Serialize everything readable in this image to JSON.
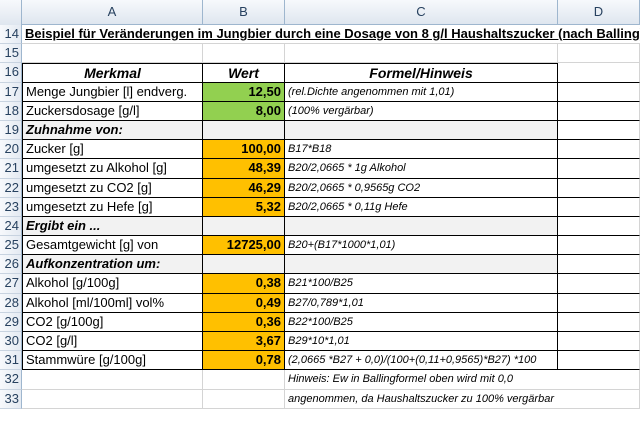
{
  "columns": [
    "A",
    "B",
    "C",
    "D"
  ],
  "title_row": {
    "num": "14",
    "text": "Beispiel für Veränderungen im Jungbier durch eine Dosage von 8 g/l Haushaltszucker (nach Balling)"
  },
  "header_row": {
    "num": "16",
    "a": "Merkmal",
    "b": "Wert",
    "c": "Formel/Hinweis"
  },
  "rows": [
    {
      "num": "17",
      "a": "Menge Jungbier [l] endverg.",
      "b": "12,50",
      "c": "(rel.Dichte angenommen mit 1,01)",
      "fill": "green"
    },
    {
      "num": "18",
      "a": "Zuckersdosage [g/l]",
      "b": "8,00",
      "c": "(100% vergärbar)",
      "fill": "green"
    },
    {
      "num": "19",
      "a": "Zuhnahme von:",
      "b": "",
      "c": "",
      "fill": "section"
    },
    {
      "num": "20",
      "a": "Zucker [g]",
      "b": "100,00",
      "c": "B17*B18",
      "fill": "orange"
    },
    {
      "num": "21",
      "a": "umgesetzt zu Alkohol [g]",
      "b": "48,39",
      "c": "B20/2,0665 * 1g Alkohol",
      "fill": "orange"
    },
    {
      "num": "22",
      "a": "umgesetzt zu CO2 [g]",
      "b": "46,29",
      "c": "B20/2,0665 * 0,9565g CO2",
      "fill": "orange"
    },
    {
      "num": "23",
      "a": "umgesetzt zu Hefe [g]",
      "b": "5,32",
      "c": "B20/2,0665 * 0,11g Hefe",
      "fill": "orange"
    },
    {
      "num": "24",
      "a": "Ergibt ein ...",
      "b": "",
      "c": "",
      "fill": "section"
    },
    {
      "num": "25",
      "a": "Gesamtgewicht [g] von",
      "b": "12725,00",
      "c": "B20+(B17*1000*1,01)",
      "fill": "orange"
    },
    {
      "num": "26",
      "a": "Aufkonzentration um:",
      "b": "",
      "c": "",
      "fill": "section"
    },
    {
      "num": "27",
      "a": "Alkohol [g/100g]",
      "b": "0,38",
      "c": "B21*100/B25",
      "fill": "orange"
    },
    {
      "num": "28",
      "a": "Alkohol [ml/100ml] vol%",
      "b": "0,49",
      "c": "B27/0,789*1,01",
      "fill": "orange"
    },
    {
      "num": "29",
      "a": "CO2 [g/100g]",
      "b": "0,36",
      "c": "B22*100/B25",
      "fill": "orange"
    },
    {
      "num": "30",
      "a": "CO2 [g/l]",
      "b": "3,67",
      "c": "B29*10*1,01",
      "fill": "orange"
    },
    {
      "num": "31",
      "a": "Stammwüre [g/100g]",
      "b": "0,78",
      "c": "(2,0665 *B27 + 0,0)/(100+(0,11+0,9565)*B27) *100",
      "fill": "orange"
    }
  ],
  "note_rows": [
    {
      "num": "32",
      "text": "Hinweis: Ew in Ballingformel oben wird mit 0,0"
    },
    {
      "num": "33",
      "text": "angenommen, da Haushaltszucker zu 100% vergärbar"
    }
  ],
  "blank_row": {
    "num": "15"
  },
  "colors": {
    "green": "#92d050",
    "orange": "#ffc000",
    "header_bg": "#dfe6ef",
    "grid": "#d4d4d4"
  }
}
